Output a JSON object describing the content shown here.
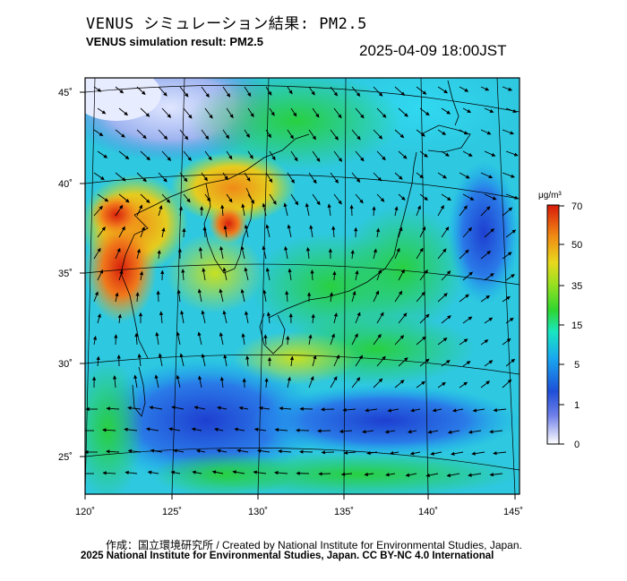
{
  "header": {
    "title_ja": "VENUS シミュレーション結果: PM2.5",
    "title_en": "VENUS simulation result: PM2.5",
    "datetime": "2025-04-09 18:00JST"
  },
  "map": {
    "latitude_labels": [
      "45˚",
      "40˚",
      "35˚",
      "30˚",
      "25˚"
    ],
    "longitude_labels": [
      "120˚",
      "125˚",
      "130˚",
      "135˚",
      "140˚",
      "145˚"
    ]
  },
  "colorbar": {
    "unit_label": "μg/m³",
    "tick_labels": [
      "70",
      "50",
      "35",
      "15",
      "5",
      "1",
      "0"
    ],
    "colors": [
      "#ffffff",
      "#1e4fd8",
      "#19a8f0",
      "#19e6a0",
      "#2fd630",
      "#b6e21e",
      "#f0b81a",
      "#f06a12",
      "#d81a0a"
    ]
  },
  "footer": {
    "credit": "作成：国立環境研究所 / Created by National Institute for Environmental Studies, Japan.",
    "copyright": "2025 National Institute for Environmental Studies, Japan. CC BY-NC 4.0 International"
  }
}
